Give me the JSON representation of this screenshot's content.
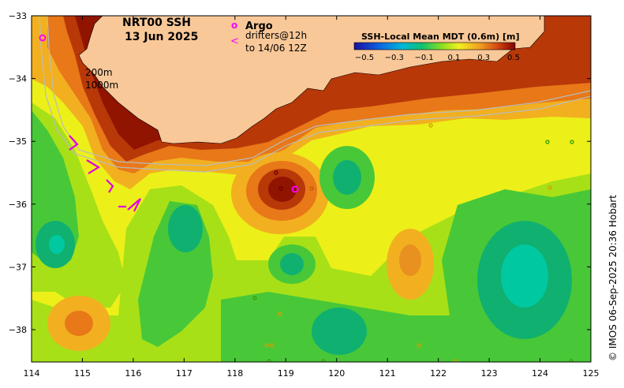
{
  "header": {
    "title_line1": "NRT00 SSH",
    "title_line2": "13 Jun 2025"
  },
  "legend": {
    "argo_symbol": "o",
    "argo_label": "Argo",
    "drifter_symbol": "<",
    "drifter_label_line1": "drifters@12h",
    "drifter_label_line2": "to 14/06 12Z"
  },
  "colorbar": {
    "title": "SSH-Local Mean MDT (0.6m) [m]",
    "ticks": [
      "−0.5",
      "−0.3",
      "−0.1",
      "0.1",
      "0.3",
      "0.5"
    ]
  },
  "isobath_labels": [
    "200m",
    "1000m"
  ],
  "axes": {
    "x_ticks": [
      "114",
      "115",
      "116",
      "117",
      "118",
      "119",
      "120",
      "121",
      "122",
      "123",
      "124",
      "125"
    ],
    "y_ticks": [
      "−33",
      "−34",
      "−35",
      "−36",
      "−37",
      "−38"
    ]
  },
  "credit": "© IMOS 06-Sep-2025 20:36 Hobart",
  "colors": {
    "land": "#f9c898",
    "argo": "#ff00ff",
    "drifter": "#e000e0"
  }
}
